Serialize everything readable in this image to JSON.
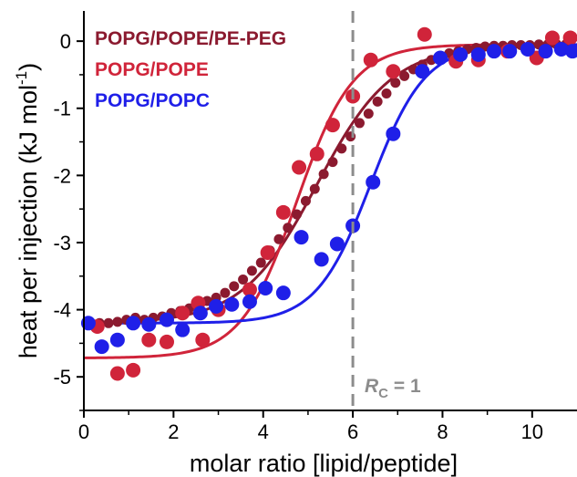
{
  "chart_data": {
    "type": "scatter",
    "xlabel": "molar ratio [lipid/peptide]",
    "ylabel_main": "heat per injection (kJ mol",
    "ylabel_sup": "-1",
    "ylabel_end": ")",
    "xlim": [
      0,
      11
    ],
    "ylim": [
      -5.5,
      0.45
    ],
    "xticks": [
      0,
      2,
      4,
      6,
      8,
      10
    ],
    "xtick_labels": [
      "0",
      "2",
      "4",
      "6",
      "8",
      "10"
    ],
    "yticks": [
      0,
      -1,
      -2,
      -3,
      -4,
      -5
    ],
    "ytick_labels": [
      "0",
      "-1",
      "-2",
      "-3",
      "-4",
      "-5"
    ],
    "grid": false,
    "legend_position": "top-left",
    "annotation": {
      "symbol": "R",
      "subscript": "C",
      "rest": " = 1",
      "line_x": 6,
      "color": "#8c8c8c"
    },
    "series": [
      {
        "name": "POPG/POPE/PE-PEG",
        "color": "#8b1a2f",
        "marker_size": 5.5,
        "fit": {
          "bottom": -4.2,
          "top": -0.07,
          "x0": 5.2,
          "k": 1.2
        },
        "points": [
          [
            0.15,
            -4.2
          ],
          [
            0.35,
            -4.2
          ],
          [
            0.55,
            -4.2
          ],
          [
            0.75,
            -4.18
          ],
          [
            0.95,
            -4.15
          ],
          [
            1.15,
            -4.12
          ],
          [
            1.35,
            -4.15
          ],
          [
            1.55,
            -4.12
          ],
          [
            1.75,
            -4.1
          ],
          [
            1.95,
            -4.05
          ],
          [
            2.15,
            -4.02
          ],
          [
            2.35,
            -3.98
          ],
          [
            2.55,
            -3.92
          ],
          [
            2.75,
            -3.87
          ],
          [
            2.95,
            -3.82
          ],
          [
            3.15,
            -3.75
          ],
          [
            3.35,
            -3.65
          ],
          [
            3.55,
            -3.55
          ],
          [
            3.75,
            -3.42
          ],
          [
            3.95,
            -3.3
          ],
          [
            4.15,
            -3.12
          ],
          [
            4.35,
            -2.95
          ],
          [
            4.55,
            -2.78
          ],
          [
            4.75,
            -2.58
          ],
          [
            4.95,
            -2.38
          ],
          [
            5.15,
            -2.2
          ],
          [
            5.35,
            -1.98
          ],
          [
            5.55,
            -1.8
          ],
          [
            5.75,
            -1.6
          ],
          [
            5.95,
            -1.42
          ],
          [
            6.15,
            -1.22
          ],
          [
            6.35,
            -1.08
          ],
          [
            6.55,
            -0.9
          ],
          [
            6.75,
            -0.78
          ],
          [
            6.95,
            -0.62
          ],
          [
            7.15,
            -0.52
          ],
          [
            7.35,
            -0.42
          ],
          [
            7.55,
            -0.35
          ],
          [
            7.75,
            -0.28
          ],
          [
            7.95,
            -0.22
          ],
          [
            8.15,
            -0.18
          ],
          [
            8.35,
            -0.15
          ],
          [
            8.55,
            -0.12
          ],
          [
            8.75,
            -0.1
          ],
          [
            8.95,
            -0.08
          ],
          [
            9.15,
            -0.07
          ],
          [
            9.35,
            -0.07
          ],
          [
            9.55,
            -0.06
          ],
          [
            9.75,
            -0.06
          ],
          [
            9.95,
            -0.06
          ],
          [
            10.15,
            -0.05
          ],
          [
            10.35,
            -0.05
          ],
          [
            10.55,
            -0.05
          ],
          [
            10.75,
            -0.05
          ]
        ]
      },
      {
        "name": "POPG/POPE",
        "color": "#d0243a",
        "marker_size": 8,
        "fit": {
          "bottom": -4.72,
          "top": -0.05,
          "x0": 4.75,
          "k": 1.6
        },
        "points": [
          [
            0.3,
            -4.25
          ],
          [
            0.75,
            -4.95
          ],
          [
            1.1,
            -4.9
          ],
          [
            1.45,
            -4.45
          ],
          [
            1.85,
            -4.48
          ],
          [
            2.2,
            -4.05
          ],
          [
            2.55,
            -3.9
          ],
          [
            2.65,
            -4.45
          ],
          [
            3.0,
            -4.0
          ],
          [
            3.7,
            -3.7
          ],
          [
            4.1,
            -3.15
          ],
          [
            4.45,
            -2.55
          ],
          [
            4.8,
            -1.88
          ],
          [
            5.2,
            -1.68
          ],
          [
            5.55,
            -1.25
          ],
          [
            6.0,
            -0.82
          ],
          [
            6.4,
            -0.28
          ],
          [
            6.9,
            -0.45
          ],
          [
            7.6,
            0.1
          ],
          [
            8.3,
            -0.3
          ],
          [
            8.8,
            -0.28
          ],
          [
            9.45,
            -0.15
          ],
          [
            10.1,
            -0.25
          ],
          [
            10.45,
            0.05
          ],
          [
            10.85,
            0.05
          ]
        ]
      },
      {
        "name": "POPG/POPC",
        "color": "#1f1fe8",
        "marker_size": 8,
        "fit": {
          "bottom": -4.2,
          "top": -0.05,
          "x0": 6.4,
          "k": 1.65
        },
        "points": [
          [
            0.1,
            -4.2
          ],
          [
            0.4,
            -4.55
          ],
          [
            0.75,
            -4.45
          ],
          [
            1.1,
            -4.2
          ],
          [
            1.45,
            -4.22
          ],
          [
            1.85,
            -4.15
          ],
          [
            2.2,
            -4.3
          ],
          [
            2.6,
            -4.05
          ],
          [
            2.95,
            -3.95
          ],
          [
            3.3,
            -3.92
          ],
          [
            3.7,
            -3.88
          ],
          [
            4.05,
            -3.68
          ],
          [
            4.45,
            -3.75
          ],
          [
            4.85,
            -2.92
          ],
          [
            5.3,
            -3.25
          ],
          [
            5.65,
            -3.02
          ],
          [
            6.0,
            -2.75
          ],
          [
            6.45,
            -2.1
          ],
          [
            6.9,
            -1.38
          ],
          [
            7.55,
            -0.45
          ],
          [
            7.95,
            -0.25
          ],
          [
            8.4,
            -0.2
          ],
          [
            8.8,
            -0.2
          ],
          [
            9.15,
            -0.15
          ],
          [
            9.5,
            -0.15
          ],
          [
            9.9,
            -0.12
          ],
          [
            10.3,
            -0.15
          ],
          [
            10.65,
            -0.12
          ],
          [
            10.9,
            -0.15
          ]
        ]
      }
    ]
  }
}
